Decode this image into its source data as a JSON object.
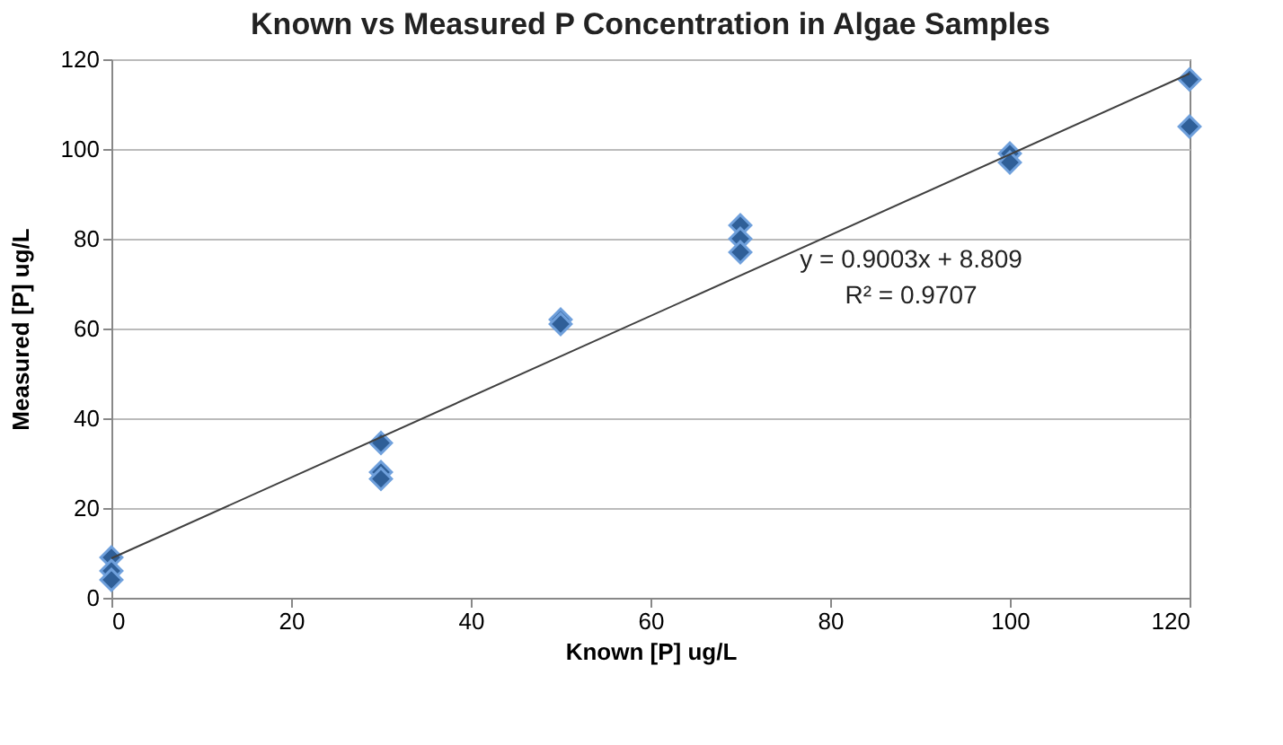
{
  "chart_data": {
    "type": "scatter",
    "title": "Known vs Measured P Concentration in Algae Samples",
    "xlabel": "Known [P] ug/L",
    "ylabel": "Measured [P] ug/L",
    "series": [
      {
        "color": "#2f5f98",
        "x": [
          0,
          0,
          0,
          30,
          30,
          30,
          50,
          50,
          70,
          70,
          70,
          100,
          100,
          120,
          120
        ],
        "values": [
          9,
          6,
          4,
          34.5,
          28,
          26.5,
          62,
          61,
          83,
          80,
          77,
          99,
          97,
          115.5,
          105
        ]
      },
      {
        "type": "line",
        "marker": "none",
        "color": "#404040",
        "x": [
          0,
          120
        ],
        "values": [
          8.8,
          116.8
        ]
      }
    ],
    "marker": "diamond",
    "xlim": [
      0,
      120
    ],
    "xticks": [
      0,
      20,
      40,
      60,
      80,
      100,
      120
    ],
    "ylim": [
      0,
      120
    ],
    "yticks": [
      0,
      20,
      40,
      60,
      80,
      100,
      120
    ],
    "grid": "y",
    "legend": false,
    "annotations": [
      "y = 0.9003x + 8.809",
      "R² = 0.9707"
    ]
  }
}
